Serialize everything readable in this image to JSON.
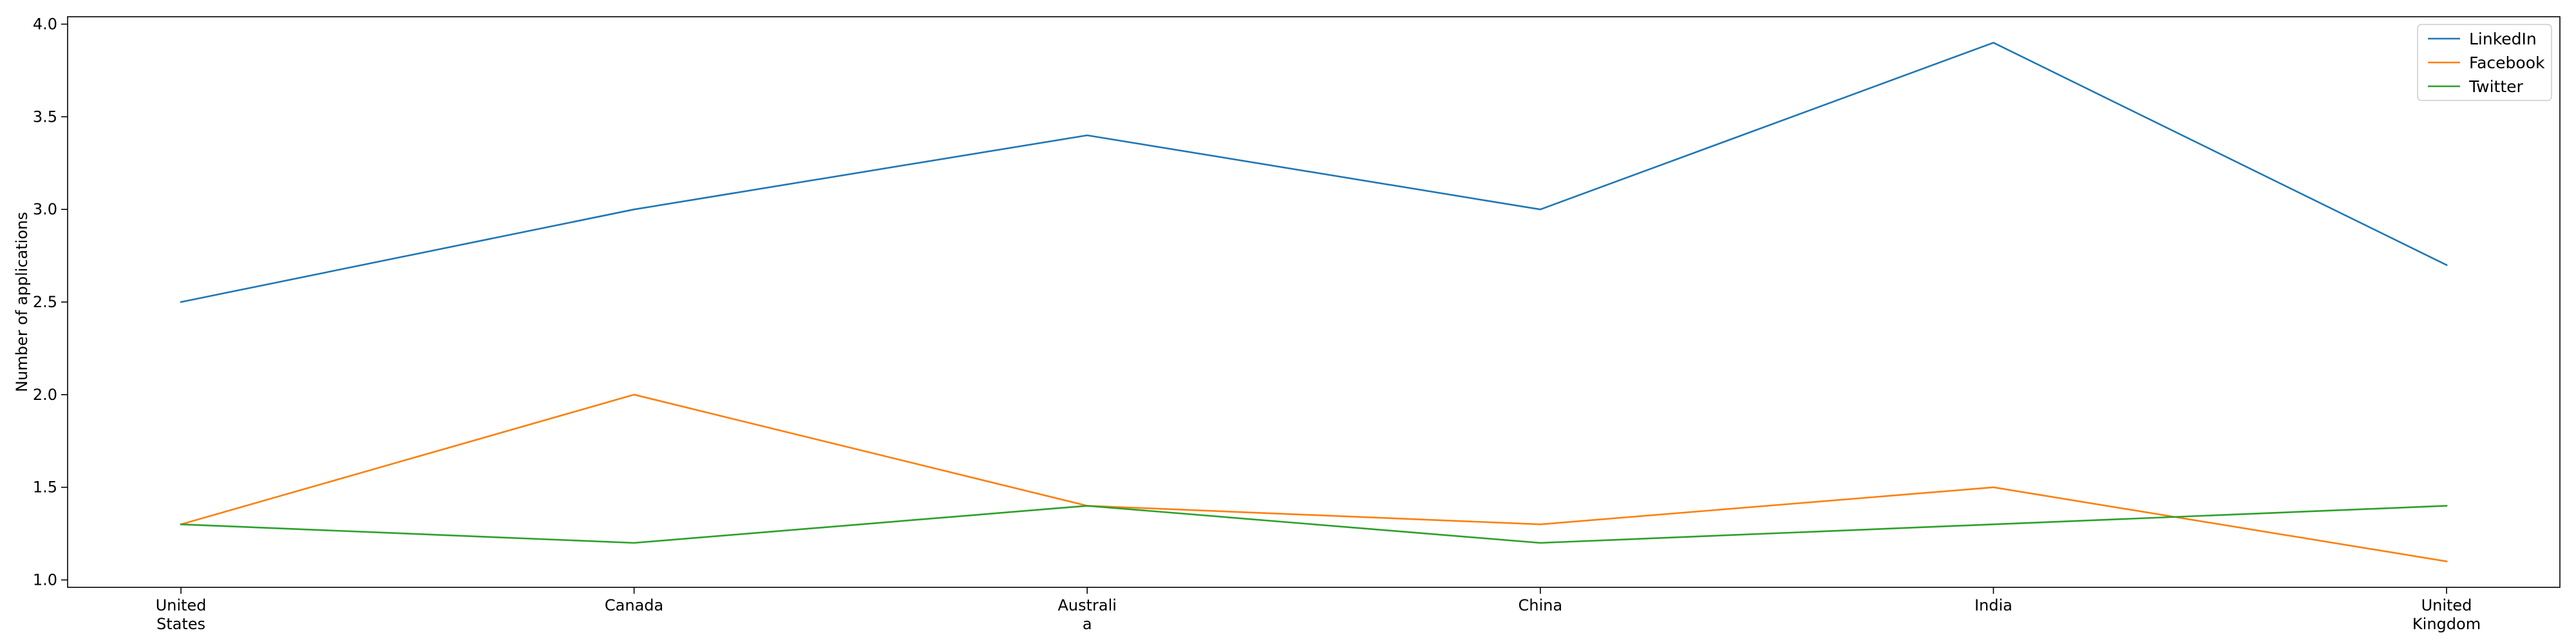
{
  "chart_data": {
    "type": "line",
    "title": "",
    "xlabel": "",
    "ylabel": "Number of applications",
    "categories": [
      "United\nStates",
      "Canada",
      "Australi\na",
      "China",
      "India",
      "United\nKingdom"
    ],
    "series": [
      {
        "name": "LinkedIn",
        "color": "#1f77b4",
        "values": [
          2.5,
          3.0,
          3.4,
          3.0,
          3.9,
          2.7
        ]
      },
      {
        "name": "Facebook",
        "color": "#ff7f0e",
        "values": [
          1.3,
          2.0,
          1.4,
          1.3,
          1.5,
          1.1
        ]
      },
      {
        "name": "Twitter",
        "color": "#2ca02c",
        "values": [
          1.3,
          1.2,
          1.4,
          1.2,
          1.3,
          1.4
        ]
      }
    ],
    "ylim": [
      0.96,
      4.04
    ],
    "yticks": [
      "1.0",
      "1.5",
      "2.0",
      "2.5",
      "3.0",
      "3.5",
      "4.0"
    ],
    "grid": false,
    "legend_position": "top-right"
  }
}
